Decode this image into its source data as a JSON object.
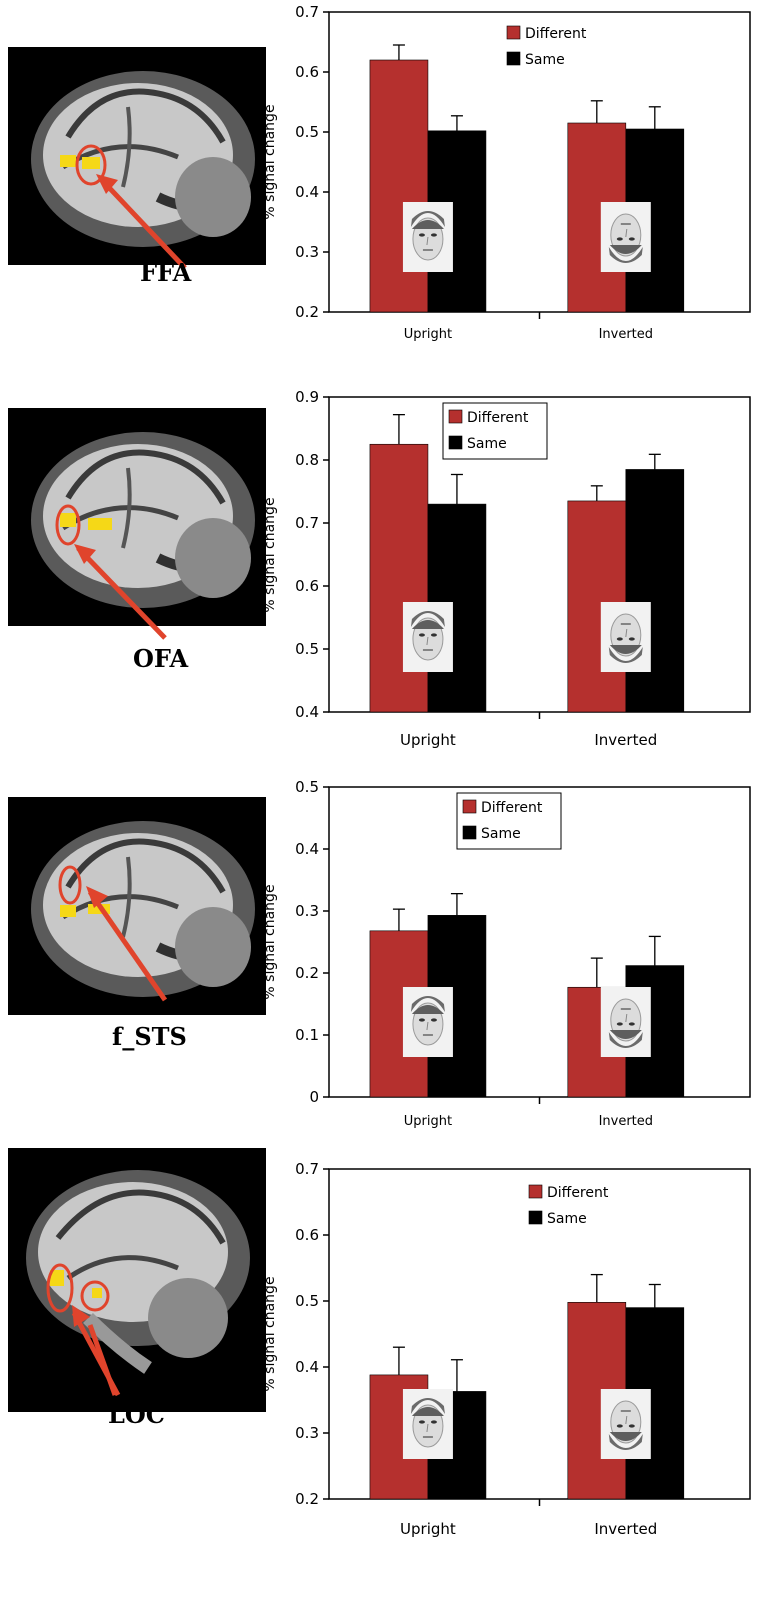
{
  "colors": {
    "different": "#b5302e",
    "same": "#000000",
    "arrow": "#e0442c",
    "activation": "#f5d817"
  },
  "panels": [
    {
      "roi_label": "FFA"
    },
    {
      "roi_label": "OFA"
    },
    {
      "roi_label": "f_STS"
    },
    {
      "roi_label": "LOC"
    }
  ],
  "chart_data": [
    {
      "type": "bar",
      "categories": [
        "Upright",
        "Inverted"
      ],
      "series": [
        {
          "name": "Different",
          "values": [
            0.62,
            0.515
          ],
          "errors": [
            0.025,
            0.037
          ]
        },
        {
          "name": "Same",
          "values": [
            0.502,
            0.505
          ],
          "errors": [
            0.025,
            0.037
          ]
        }
      ],
      "title": "",
      "xlabel": "",
      "ylabel": "% signal change",
      "ylim": [
        0.2,
        0.7
      ],
      "yticks": [
        "0.2",
        "0.3",
        "0.4",
        "0.5",
        "0.6",
        "0.7"
      ],
      "legend": "top-right",
      "grid": false
    },
    {
      "type": "bar",
      "categories": [
        "Upright",
        "Inverted"
      ],
      "series": [
        {
          "name": "Different",
          "values": [
            0.825,
            0.735
          ],
          "errors": [
            0.047,
            0.024
          ]
        },
        {
          "name": "Same",
          "values": [
            0.73,
            0.785
          ],
          "errors": [
            0.047,
            0.024
          ]
        }
      ],
      "title": "",
      "xlabel": "",
      "ylabel": "% signal change",
      "ylim": [
        0.4,
        0.9
      ],
      "yticks": [
        "0.4",
        "0.5",
        "0.6",
        "0.7",
        "0.8",
        "0.9"
      ],
      "legend": "top-right",
      "grid": false
    },
    {
      "type": "bar",
      "categories": [
        "Upright",
        "Inverted"
      ],
      "series": [
        {
          "name": "Different",
          "values": [
            0.268,
            0.177
          ],
          "errors": [
            0.035,
            0.047
          ]
        },
        {
          "name": "Same",
          "values": [
            0.293,
            0.212
          ],
          "errors": [
            0.035,
            0.047
          ]
        }
      ],
      "title": "",
      "xlabel": "",
      "ylabel": "% signal change",
      "ylim": [
        0,
        0.5
      ],
      "yticks": [
        "0",
        "0.1",
        "0.2",
        "0.3",
        "0.4",
        "0.5"
      ],
      "legend": "top-right",
      "grid": false
    },
    {
      "type": "bar",
      "categories": [
        "Upright",
        "Inverted"
      ],
      "series": [
        {
          "name": "Different",
          "values": [
            0.388,
            0.498
          ],
          "errors": [
            0.042,
            0.042
          ]
        },
        {
          "name": "Same",
          "values": [
            0.363,
            0.49
          ],
          "errors": [
            0.048,
            0.035
          ]
        }
      ],
      "title": "",
      "xlabel": "",
      "ylabel": "% signal change",
      "ylim": [
        0.2,
        0.7
      ],
      "yticks": [
        "0.2",
        "0.3",
        "0.4",
        "0.5",
        "0.6",
        "0.7"
      ],
      "legend": "top-right",
      "grid": false
    }
  ]
}
